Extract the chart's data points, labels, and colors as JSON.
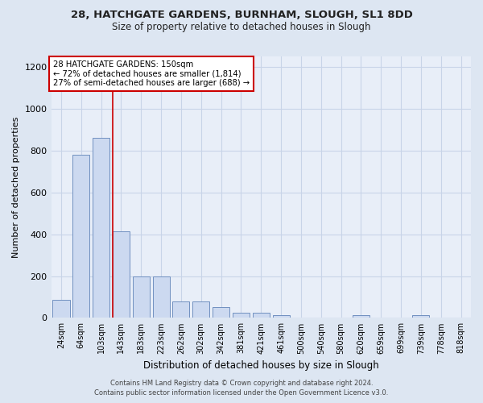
{
  "title1": "28, HATCHGATE GARDENS, BURNHAM, SLOUGH, SL1 8DD",
  "title2": "Size of property relative to detached houses in Slough",
  "xlabel": "Distribution of detached houses by size in Slough",
  "ylabel": "Number of detached properties",
  "annotation_line1": "28 HATCHGATE GARDENS: 150sqm",
  "annotation_line2": "← 72% of detached houses are smaller (1,814)",
  "annotation_line3": "27% of semi-detached houses are larger (688) →",
  "footer1": "Contains HM Land Registry data © Crown copyright and database right 2024.",
  "footer2": "Contains public sector information licensed under the Open Government Licence v3.0.",
  "bar_categories": [
    "24sqm",
    "64sqm",
    "103sqm",
    "143sqm",
    "183sqm",
    "223sqm",
    "262sqm",
    "302sqm",
    "342sqm",
    "381sqm",
    "421sqm",
    "461sqm",
    "500sqm",
    "540sqm",
    "580sqm",
    "620sqm",
    "659sqm",
    "699sqm",
    "739sqm",
    "778sqm",
    "818sqm"
  ],
  "bar_values": [
    85,
    780,
    860,
    415,
    200,
    200,
    80,
    80,
    50,
    25,
    25,
    12,
    0,
    0,
    0,
    14,
    0,
    0,
    14,
    0,
    0
  ],
  "bar_color": "#ccd9f0",
  "bar_edge_color": "#7090c0",
  "red_line_x": 2.57,
  "red_line_color": "#cc0000",
  "annotation_box_color": "#ffffff",
  "annotation_box_edge": "#cc0000",
  "ylim": [
    0,
    1250
  ],
  "yticks": [
    0,
    200,
    400,
    600,
    800,
    1000,
    1200
  ],
  "grid_color": "#c8d4e8",
  "bg_color": "#dde6f2",
  "plot_bg_color": "#e8eef8"
}
